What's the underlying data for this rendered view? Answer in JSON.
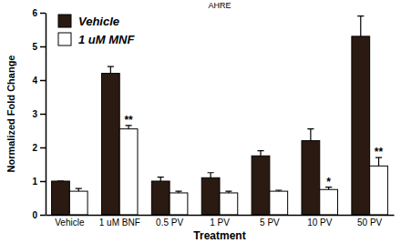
{
  "chart_data": {
    "type": "bar",
    "title": "AHRE",
    "x_label": "Treatment",
    "y_label": "Normalized Fold Change",
    "categories": [
      "Vehicle",
      "1 uM BNF",
      "0.5 PV",
      "1 PV",
      "5 PV",
      "10 PV",
      "50 PV"
    ],
    "series": [
      {
        "name": "Vehicle",
        "color": "#2a1a12",
        "values": [
          1.0,
          4.2,
          1.0,
          1.1,
          1.75,
          2.2,
          5.3
        ],
        "errors": [
          0,
          0.2,
          0.12,
          0.15,
          0.15,
          0.35,
          0.6
        ]
      },
      {
        "name": "1 uM MNF",
        "color": "#ffffff",
        "values": [
          0.7,
          2.55,
          0.65,
          0.65,
          0.7,
          0.75,
          1.45
        ],
        "errors": [
          0.08,
          0.1,
          0.05,
          0.05,
          0.03,
          0.07,
          0.25
        ],
        "significance": [
          null,
          "**",
          null,
          null,
          null,
          "*",
          "**"
        ]
      }
    ],
    "ylim": [
      0,
      6
    ],
    "yticks": [
      0,
      1,
      2,
      3,
      4,
      5,
      6
    ],
    "legend": "top-left",
    "grid": false
  }
}
